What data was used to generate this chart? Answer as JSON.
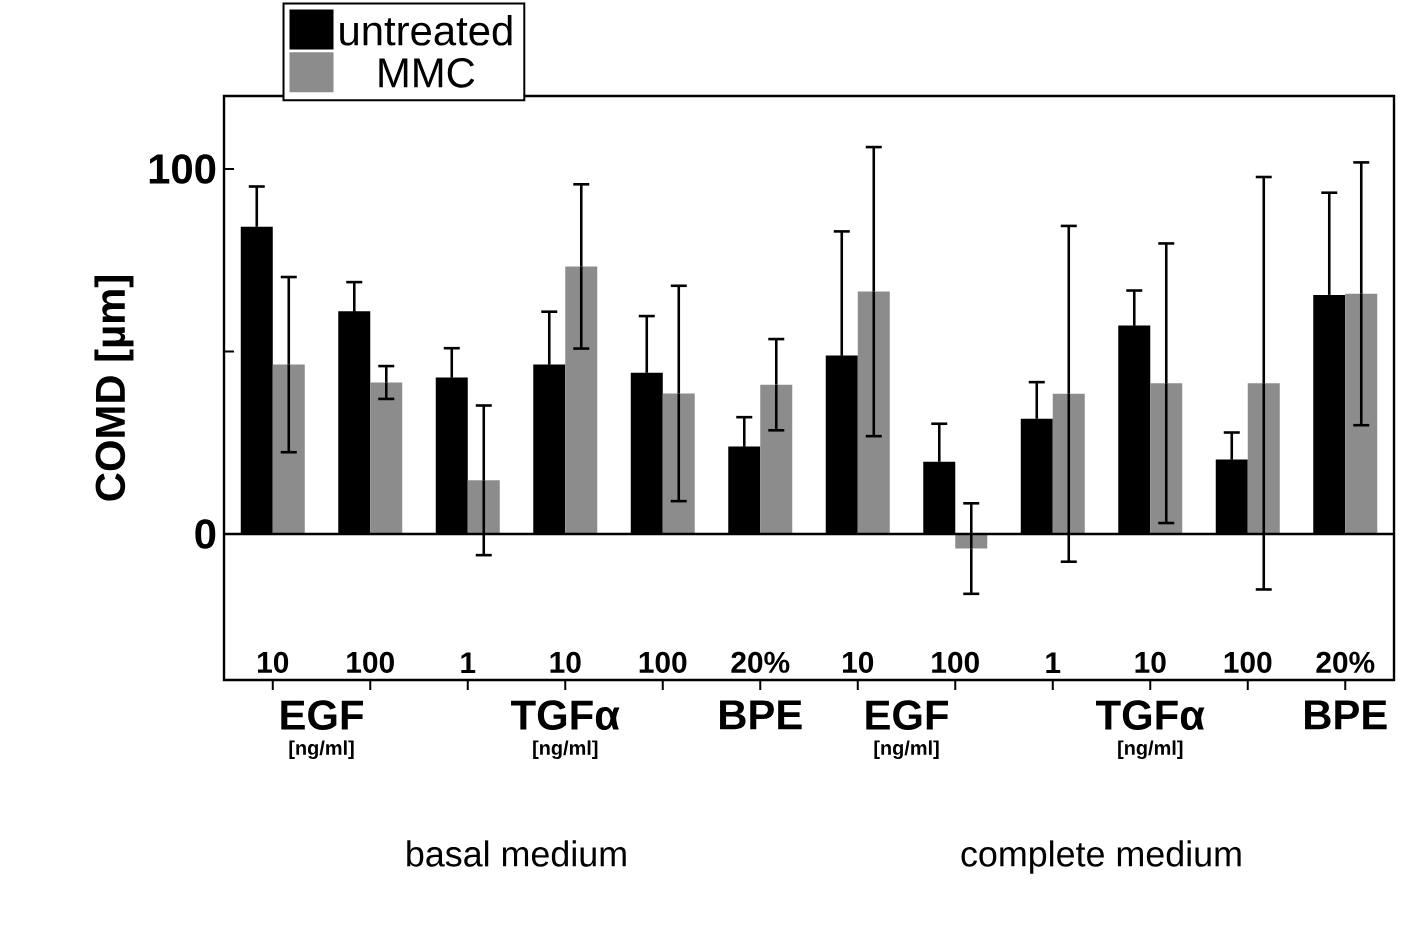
{
  "chart_data": {
    "type": "bar",
    "ylabel": "COMD [µm]",
    "categories": [
      "10",
      "100",
      "1",
      "10",
      "100",
      "20%",
      "10",
      "100",
      "1",
      "10",
      "100",
      "20%"
    ],
    "series": [
      {
        "name": "untreated",
        "color": "#000000",
        "values": [
          84.2,
          61,
          42.9,
          46.4,
          44.2,
          24,
          48.9,
          19.8,
          31.6,
          57.1,
          20.4,
          65.5
        ],
        "errors": [
          11,
          8,
          8,
          14.5,
          15.5,
          8,
          34,
          10.4,
          10,
          9.6,
          7.4,
          28
        ]
      },
      {
        "name": "MMC",
        "color": "#8c8c8c",
        "values": [
          46.4,
          41.5,
          14.7,
          73.3,
          38.5,
          40.9,
          66.4,
          -4,
          38.4,
          41.3,
          41.3,
          65.8
        ],
        "errors": [
          24,
          4.5,
          20.5,
          22.5,
          29.5,
          12.5,
          39.6,
          12.4,
          46,
          38.3,
          56.5,
          36
        ]
      }
    ],
    "ylim": [
      -40,
      120
    ],
    "yticks": [
      0,
      {
        "value": 50,
        "label": null
      },
      100
    ],
    "ref_lines": [
      {
        "axis": "y",
        "value": 0
      }
    ],
    "legend": "top left",
    "annotations": [
      "EGF",
      "[ng/ml]",
      "TGFα",
      "[ng/ml]",
      "BPE",
      "EGF",
      "[ng/ml]",
      "TGFα",
      "[ng/ml]",
      "BPE",
      "basal medium",
      "complete medium"
    ]
  }
}
